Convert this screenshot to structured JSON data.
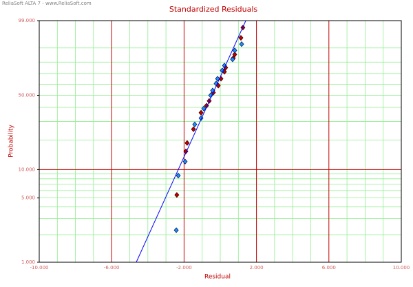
{
  "header": "ReliaSoft ALTA 7 - www.ReliaSoft.com",
  "chart_data": {
    "type": "probability-scatter",
    "title": "Standardized Residuals",
    "x_label": "Residual",
    "y_label": "Probability",
    "y_scale": "weibull",
    "xlim": [
      -10,
      10
    ],
    "ylim": [
      1,
      99
    ],
    "xticks": [
      {
        "value": -10,
        "label": "-10.000"
      },
      {
        "value": -6,
        "label": "-6.000"
      },
      {
        "value": -2,
        "label": "-2.000"
      },
      {
        "value": 2,
        "label": "2.000"
      },
      {
        "value": 6,
        "label": "6.000"
      },
      {
        "value": 10,
        "label": "10.000"
      }
    ],
    "yticks": [
      {
        "value": 1,
        "label": "1.000"
      },
      {
        "value": 5,
        "label": "5.000"
      },
      {
        "value": 10,
        "label": "10.000"
      },
      {
        "value": 50,
        "label": "50.000"
      },
      {
        "value": 99,
        "label": "99.000"
      }
    ],
    "minor_xgrid": [
      -9,
      -8,
      -7,
      -5,
      -4,
      -3,
      -1,
      0,
      1,
      3,
      4,
      5,
      7,
      8,
      9
    ],
    "minor_ygrid": [
      2,
      3,
      4,
      5,
      6,
      7,
      8,
      9,
      20,
      30,
      40,
      50,
      60,
      70,
      80,
      90
    ],
    "major_ygrid": [
      10
    ],
    "minor_grid_color": "#90ee90",
    "major_grid_color": "#c00000",
    "series": [
      {
        "kind": "points",
        "color": "#c00000",
        "stroke": "#400000",
        "x": [
          -2.4,
          -1.9,
          -1.83,
          -1.48,
          -1.06,
          -0.76,
          -0.61,
          -0.38,
          -0.11,
          0.04,
          0.23,
          0.3,
          0.72,
          0.8,
          1.14,
          1.25
        ],
        "values": [
          5.39,
          15.4,
          18.7,
          25.4,
          36.0,
          41.3,
          45.2,
          52.4,
          58.8,
          65.2,
          71.6,
          75.3,
          83.2,
          85.8,
          94.9,
          97.9
        ]
      },
      {
        "kind": "points",
        "color": "#1e90ff",
        "stroke": "#00205a",
        "x": [
          -2.43,
          -2.32,
          -1.94,
          -1.41,
          -1.06,
          -0.91,
          -0.53,
          -0.42,
          -0.23,
          -0.15,
          0.11,
          0.23,
          0.68,
          0.8,
          1.18
        ],
        "values": [
          2.24,
          8.65,
          12.1,
          28.2,
          32.2,
          39.1,
          50.0,
          54.3,
          60.7,
          65.2,
          72.8,
          77.1,
          82.2,
          88.5,
          92.1
        ]
      },
      {
        "kind": "line",
        "color": "#0000ff",
        "x": [
          -4.64,
          1.41
        ],
        "values": [
          1,
          99
        ]
      }
    ]
  }
}
